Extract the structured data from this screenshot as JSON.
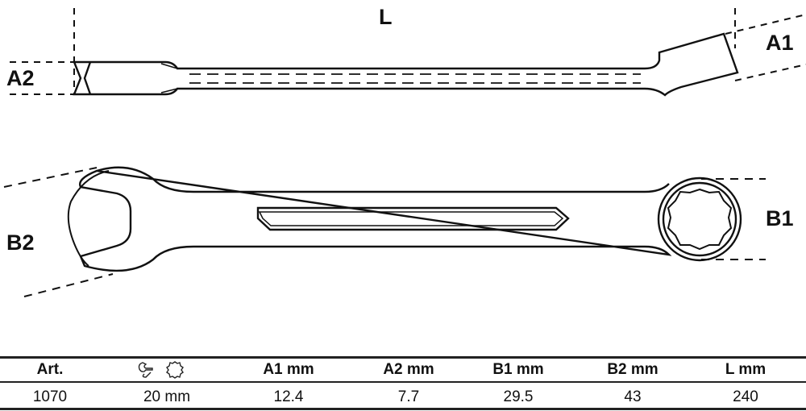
{
  "labels": {
    "L": "L",
    "A1": "A1",
    "A2": "A2",
    "B1": "B1",
    "B2": "B2"
  },
  "table": {
    "headers": [
      "Art.",
      "",
      "A1  mm",
      "A2  mm",
      "B1  mm",
      "B2  mm",
      "L  mm"
    ],
    "size_header_icons": [
      "open-end-wrench-icon",
      "ring-12-point-icon"
    ],
    "rows": [
      [
        "1070",
        "20 mm",
        "12.4",
        "7.7",
        "29.5",
        "43",
        "240"
      ]
    ]
  }
}
